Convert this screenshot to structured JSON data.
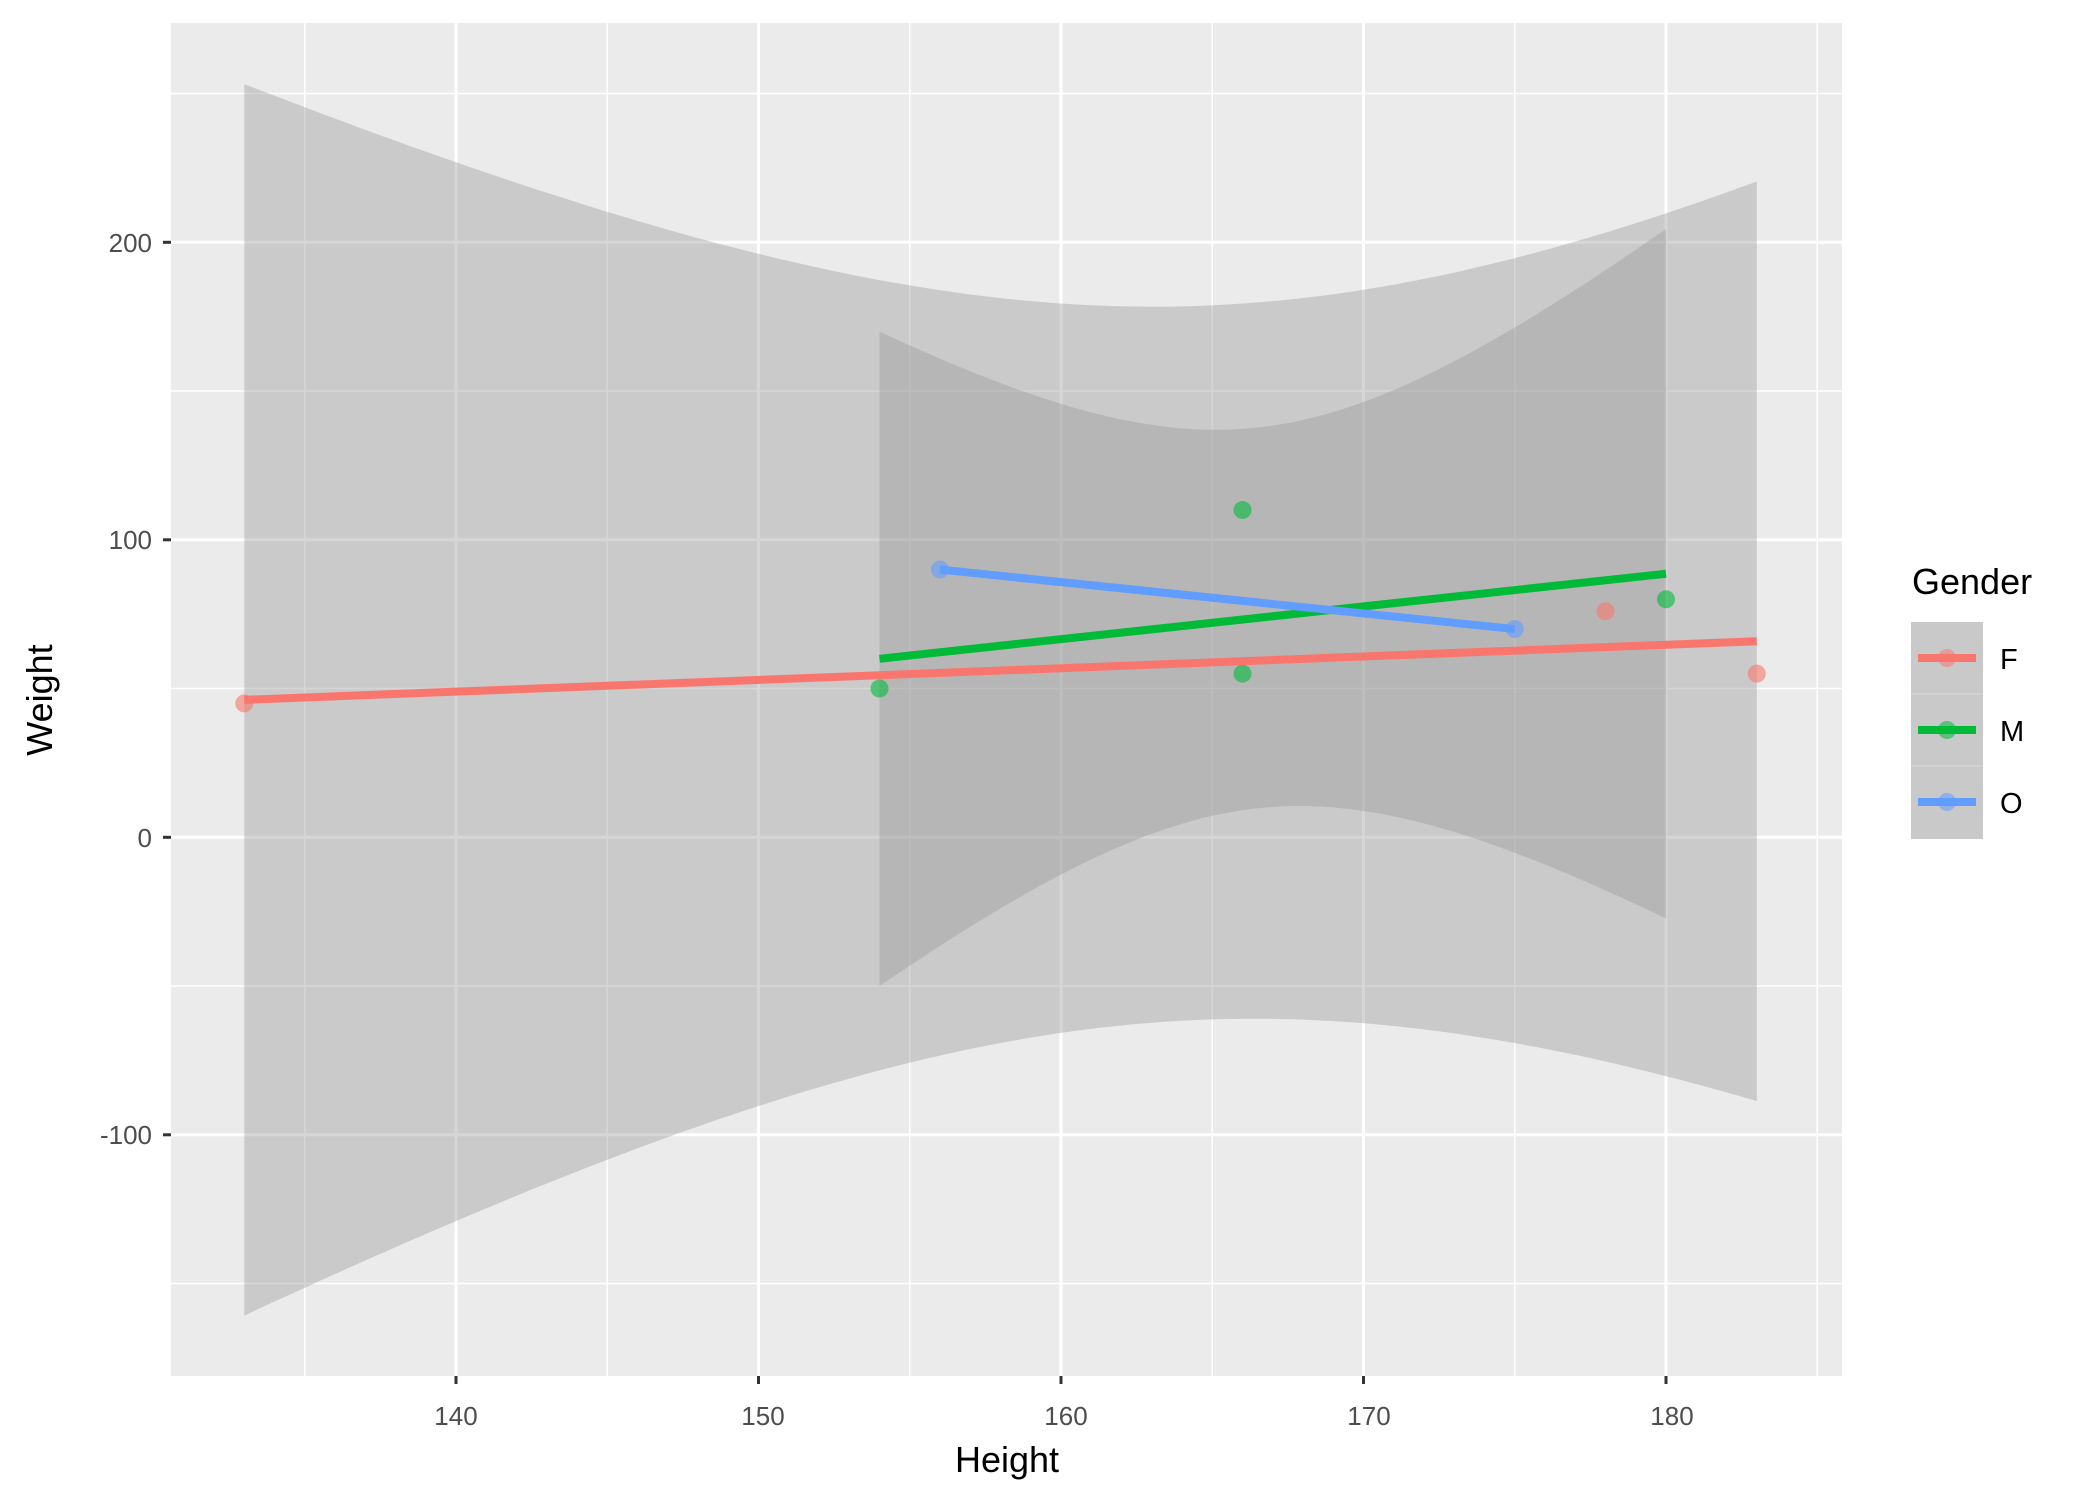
{
  "chart_data": {
    "type": "scatter",
    "title": "",
    "xlabel": "Height",
    "ylabel": "Weight",
    "xlim": [
      130.5,
      185.5
    ],
    "ylim": [
      -178,
      273
    ],
    "x_ticks": [
      140,
      150,
      160,
      170,
      180
    ],
    "x_tick_labels": [
      "140",
      "150",
      "160",
      "170",
      "180"
    ],
    "y_ticks": [
      -100,
      0,
      100,
      200
    ],
    "y_tick_labels": [
      "-100",
      "0",
      "100",
      "200"
    ],
    "grid": true,
    "legend": {
      "title": "Gender",
      "position": "right",
      "entries": [
        "F",
        "M",
        "O"
      ]
    },
    "series": [
      {
        "name": "F",
        "color": "#F8766D",
        "points": [
          {
            "x": 133,
            "y": 45
          },
          {
            "x": 178,
            "y": 76
          },
          {
            "x": 183,
            "y": 55
          }
        ],
        "fit": {
          "method": "lm",
          "x_start": 133,
          "x_end": 183,
          "y_start": 46.2,
          "y_end": 65.9
        },
        "ci_band": {
          "center_x": 164.7,
          "min_halfwidth": 120,
          "curvature": 28.3
        }
      },
      {
        "name": "M",
        "color": "#00BA38",
        "points": [
          {
            "x": 154,
            "y": 50
          },
          {
            "x": 166,
            "y": 110
          },
          {
            "x": 166,
            "y": 55
          },
          {
            "x": 180,
            "y": 80
          }
        ],
        "fit": {
          "method": "lm",
          "x_start": 154,
          "x_end": 180,
          "y_start": 60.0,
          "y_end": 88.6
        },
        "ci_band": {
          "center_x": 166.5,
          "min_halfwidth": 64,
          "curvature": 51.2
        }
      },
      {
        "name": "O",
        "color": "#619CFF",
        "points": [
          {
            "x": 156,
            "y": 90
          },
          {
            "x": 175,
            "y": 70
          }
        ],
        "fit": {
          "method": "lm",
          "x_start": 156,
          "x_end": 175,
          "y_start": 90,
          "y_end": 70
        },
        "ci_band": null
      }
    ]
  },
  "axes": {
    "x_title": "Height",
    "y_title": "Weight",
    "x_tick_labels": [
      "140",
      "150",
      "160",
      "170",
      "180"
    ],
    "y_tick_labels": [
      "200",
      "100",
      "0",
      "-100"
    ]
  },
  "legend": {
    "title": "Gender",
    "items": [
      {
        "label": "F",
        "color": "#F8766D"
      },
      {
        "label": "M",
        "color": "#00BA38"
      },
      {
        "label": "O",
        "color": "#619CFF"
      }
    ]
  },
  "colors": {
    "panel_bg": "#EBEBEB",
    "grid_major": "#FFFFFF",
    "band_fill": "#999999",
    "legend_key_bg": "#C9C9C9"
  }
}
